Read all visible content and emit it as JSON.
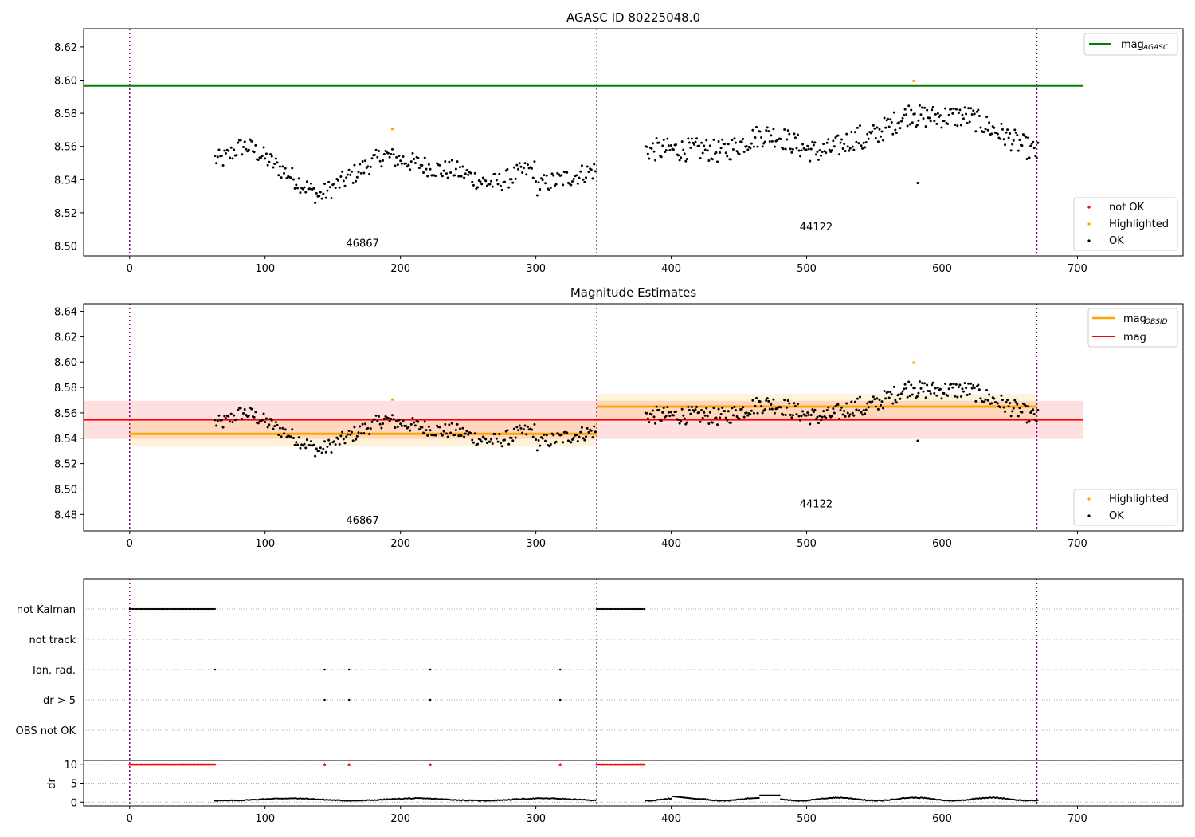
{
  "chart_data": [
    {
      "type": "scatter",
      "title": "AGASC ID 80225048.0",
      "xlabel": "",
      "ylabel": "",
      "xlim": [
        -34,
        778
      ],
      "ylim": [
        8.494,
        8.631
      ],
      "x_ticks": [
        0,
        100,
        200,
        300,
        400,
        500,
        600,
        700
      ],
      "y_ticks": [
        8.5,
        8.52,
        8.54,
        8.56,
        8.58,
        8.6,
        8.62
      ],
      "obsid_boundaries": [
        0,
        345,
        670
      ],
      "obsid_labels": [
        {
          "text": "46867",
          "x": 172,
          "y": 8.4995
        },
        {
          "text": "44122",
          "x": 507,
          "y": 8.5095
        }
      ],
      "reference_lines": [
        {
          "name": "mag",
          "subscript": "AGASC",
          "y": 8.5965,
          "x_start": -34,
          "x_end": 704,
          "color": "#008000"
        }
      ],
      "legend_top": "upper-right",
      "legend_bottom": [
        "not OK",
        "Highlighted",
        "OK"
      ],
      "legend_bottom_placement": "lower-right",
      "series_colors": {
        "not OK": "#ff0000",
        "Highlighted": "#ffa500",
        "OK": "#000000"
      },
      "highlighted_points": [
        [
          194,
          8.5705
        ],
        [
          579,
          8.5995
        ]
      ]
    },
    {
      "type": "scatter",
      "title": "Magnitude Estimates",
      "xlabel": "",
      "ylabel": "",
      "xlim": [
        -34,
        778
      ],
      "ylim": [
        8.467,
        8.646
      ],
      "x_ticks": [
        0,
        100,
        200,
        300,
        400,
        500,
        600,
        700
      ],
      "y_ticks": [
        8.48,
        8.5,
        8.52,
        8.54,
        8.56,
        8.58,
        8.6,
        8.62,
        8.64
      ],
      "obsid_boundaries": [
        0,
        345,
        670
      ],
      "obsid_labels": [
        {
          "text": "46867",
          "x": 172,
          "y": 8.4725
        },
        {
          "text": "44122",
          "x": 507,
          "y": 8.4855
        }
      ],
      "mag_band": {
        "name": "mag",
        "y": 8.5545,
        "low": 8.5395,
        "high": 8.5695,
        "x_start": -34,
        "x_end": 704,
        "color": "#ff0000"
      },
      "obsid_mags": [
        {
          "x_start": 0,
          "x_end": 345,
          "y": 8.5435,
          "low": 8.5335,
          "high": 8.5535
        },
        {
          "x_start": 345,
          "x_end": 670,
          "y": 8.565,
          "low": 8.555,
          "high": 8.575
        }
      ],
      "obsid_mag_label": "mag",
      "obsid_mag_subscript": "OBSID",
      "obsid_mag_color": "#ffa500",
      "legend_top": [
        "mag",
        "mag"
      ],
      "legend_bottom": [
        "Highlighted",
        "OK"
      ],
      "highlighted_points": [
        [
          194,
          8.5705
        ],
        [
          579,
          8.5995
        ]
      ]
    },
    {
      "type": "scatter",
      "title": "",
      "xlim": [
        -34,
        778
      ],
      "flag_rows": [
        "not Kalman",
        "not track",
        "Ion. rad.",
        "dr > 5",
        "OBS not OK"
      ],
      "flags": {
        "not Kalman": [
          [
            0,
            63
          ],
          [
            345,
            380
          ]
        ],
        "Ion. rad.": [
          63,
          144,
          162,
          222,
          318
        ],
        "dr > 5": [
          144,
          162,
          222,
          318
        ]
      },
      "dr_panel": {
        "ylabel": "dr",
        "y_ticks": [
          0,
          5,
          10
        ],
        "ylim": [
          -1,
          11
        ],
        "clipped_marker_color": "#ff0000",
        "clipped_ranges": [
          [
            0,
            63
          ],
          [
            345,
            380
          ]
        ],
        "clipped_points": [
          144,
          162,
          222,
          318
        ]
      },
      "x_ticks": [
        0,
        100,
        200,
        300,
        400,
        500,
        600,
        700
      ]
    }
  ],
  "time_series": {
    "x_start": 63,
    "gap_start": 345,
    "gap_end": 381,
    "x_end": 671
  }
}
